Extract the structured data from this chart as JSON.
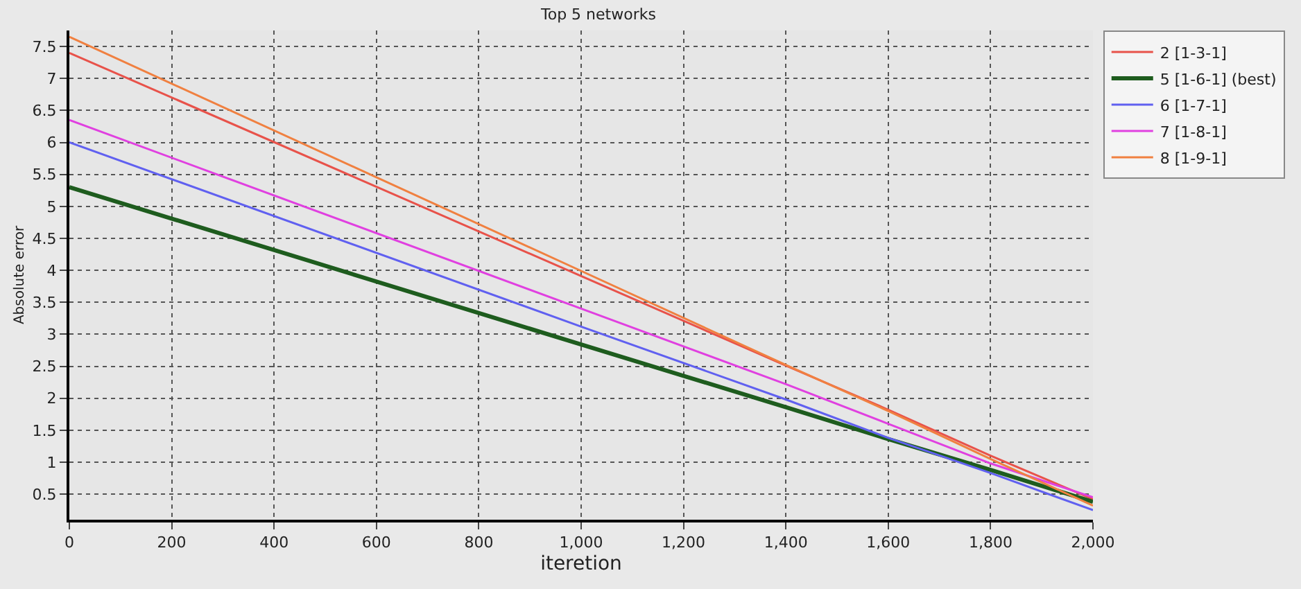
{
  "chart_data": {
    "type": "line",
    "title": "Top 5 networks",
    "xlabel": "iteretion",
    "ylabel": "Absolute error",
    "x": [
      0,
      1000,
      1400,
      1600,
      1800,
      2000
    ],
    "series": [
      {
        "name": "2 [1-3-1]",
        "color": "#e8524a",
        "values": [
          7.4,
          3.91,
          2.51,
          1.82,
          1.1,
          0.42
        ]
      },
      {
        "name": "5 [1-6-1] (best)",
        "color": "#1e5c1e",
        "values": [
          5.3,
          2.84,
          1.86,
          1.36,
          0.88,
          0.38
        ]
      },
      {
        "name": "6 [1-7-1]",
        "color": "#6060f0",
        "values": [
          6.0,
          3.12,
          1.98,
          1.38,
          0.83,
          0.25
        ]
      },
      {
        "name": "7 [1-8-1]",
        "color": "#e040e0",
        "values": [
          6.35,
          3.4,
          2.22,
          1.6,
          0.98,
          0.45
        ]
      },
      {
        "name": "8 [1-9-1]",
        "color": "#f08040",
        "values": [
          7.65,
          3.99,
          2.52,
          1.8,
          1.05,
          0.32
        ]
      }
    ],
    "xlim": [
      0,
      2000
    ],
    "xticks": [
      0,
      200,
      400,
      600,
      800,
      {
        "value": 1000,
        "label": "1,000"
      },
      {
        "value": 1200,
        "label": "1,200"
      },
      {
        "value": 1400,
        "label": "1,400"
      },
      {
        "value": 1600,
        "label": "1,600"
      },
      {
        "value": 1800,
        "label": "1,800"
      },
      {
        "value": 2000,
        "label": "2,000"
      }
    ],
    "ylim": [
      0.1,
      7.75
    ],
    "yticks": [
      0.5,
      1,
      1.5,
      2,
      2.5,
      3,
      3.5,
      4,
      4.5,
      5,
      5.5,
      6,
      6.5,
      7,
      7.5
    ],
    "grid": true,
    "legend": "top right",
    "marker": "none",
    "line_style": "solid"
  }
}
